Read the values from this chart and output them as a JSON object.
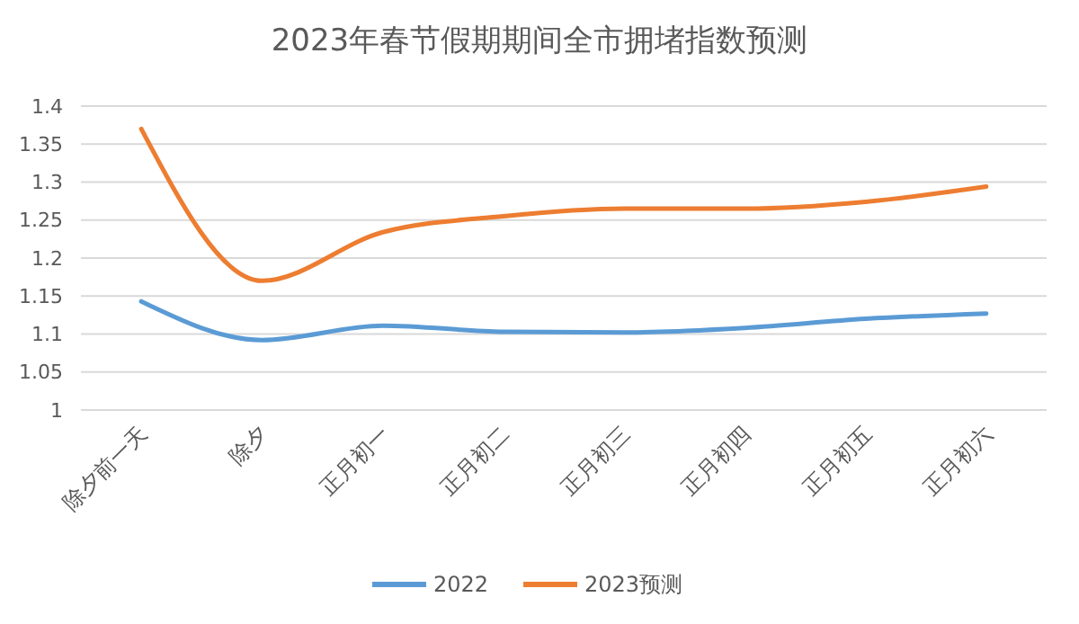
{
  "chart_data": {
    "type": "line",
    "title": "2023年春节假期期间全市拥堵指数预测",
    "categories": [
      "除夕前一天",
      "除夕",
      "正月初一",
      "正月初二",
      "正月初三",
      "正月初四",
      "正月初五",
      "正月初六"
    ],
    "series": [
      {
        "name": "2022",
        "color": "#5b9bd5",
        "values": [
          1.143,
          1.092,
          1.111,
          1.103,
          1.102,
          1.108,
          1.12,
          1.127
        ]
      },
      {
        "name": "2023预测",
        "color": "#ed7d31",
        "values": [
          1.37,
          1.17,
          1.234,
          1.255,
          1.265,
          1.265,
          1.274,
          1.294
        ]
      }
    ],
    "ylim": [
      1,
      1.4
    ],
    "yticks": [
      1,
      1.05,
      1.1,
      1.15,
      1.2,
      1.25,
      1.3,
      1.35,
      1.4
    ],
    "grid": "y",
    "legend": "bottom",
    "marker": "none",
    "line_style": "solid"
  }
}
